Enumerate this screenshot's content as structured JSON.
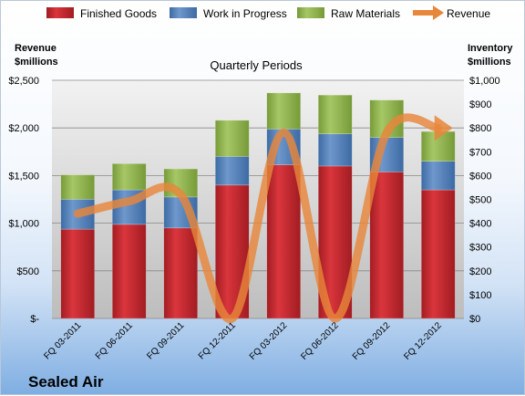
{
  "chart_data": {
    "type": "bar",
    "subtype": "stacked-bar-with-line",
    "title": "Quarterly Periods",
    "company": "Sealed Air",
    "categories": [
      "FQ 03-2011",
      "FQ 06-2011",
      "FQ 09-2011",
      "FQ 12-2011",
      "FQ 03-2012",
      "FQ 06-2012",
      "FQ 09-2012",
      "FQ 12-2012"
    ],
    "left_axis": {
      "label_line1": "Revenue",
      "label_line2": "$millions",
      "ylim": [
        0,
        2500
      ],
      "ticks": [
        0,
        500,
        1000,
        1500,
        2000,
        2500
      ],
      "tick_labels": [
        "$-",
        "$500",
        "$1,000",
        "$1,500",
        "$2,000",
        "$2,500"
      ]
    },
    "right_axis": {
      "label_line1": "Inventory",
      "label_line2": "$millions",
      "ylim": [
        0,
        1000
      ],
      "ticks": [
        0,
        100,
        200,
        300,
        400,
        500,
        600,
        700,
        800,
        900,
        1000
      ],
      "tick_labels": [
        "$0",
        "$100",
        "$200",
        "$300",
        "$400",
        "$500",
        "$600",
        "$700",
        "$800",
        "$900",
        "$1,000"
      ]
    },
    "series": [
      {
        "name": "Finished Goods",
        "axis": "right",
        "kind": "bar",
        "color": "#c0272d",
        "values": [
          375,
          395,
          380,
          560,
          645,
          640,
          615,
          540
        ]
      },
      {
        "name": "Work in Progress",
        "axis": "right",
        "kind": "bar",
        "color": "#4f81bd",
        "values": [
          125,
          145,
          130,
          120,
          150,
          135,
          145,
          120
        ]
      },
      {
        "name": "Raw Materials",
        "axis": "right",
        "kind": "bar",
        "color": "#8fb24c",
        "values": [
          103,
          110,
          118,
          152,
          152,
          163,
          157,
          125
        ]
      },
      {
        "name": "Revenue",
        "axis": "left",
        "kind": "line",
        "color": "#e8863a",
        "values": [
          1100,
          1230,
          1300,
          0,
          1950,
          0,
          1950,
          2000
        ]
      }
    ],
    "grid": true,
    "legend_position": "top"
  }
}
